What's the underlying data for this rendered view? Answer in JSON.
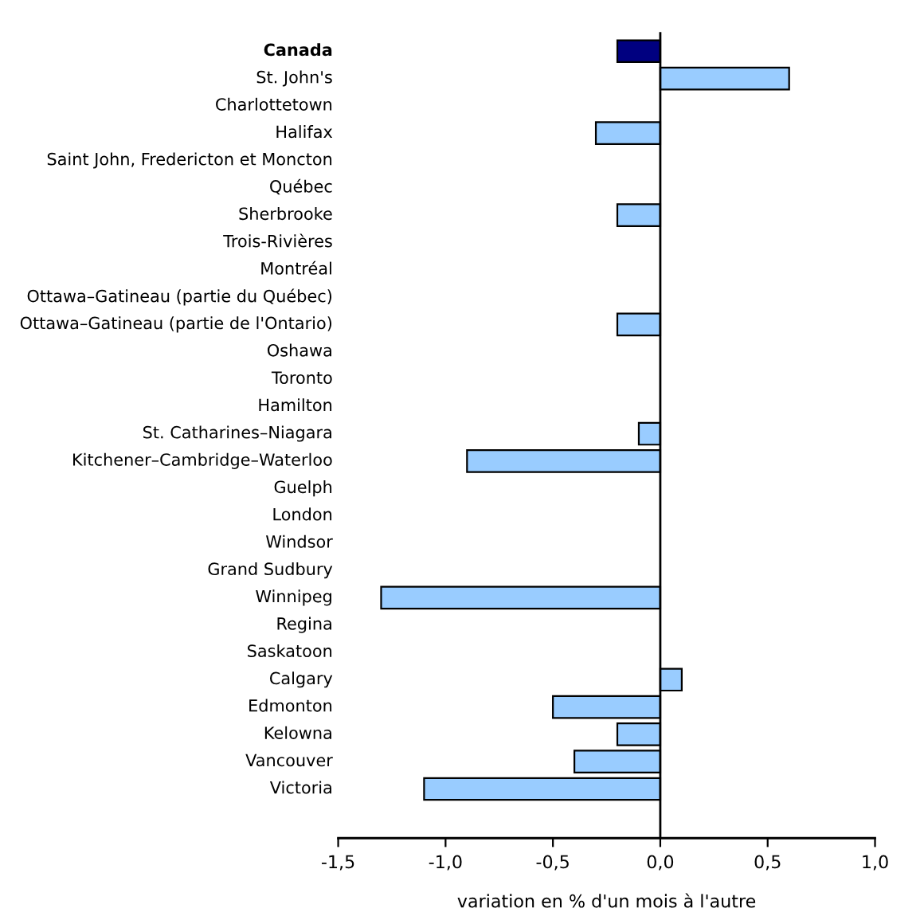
{
  "chart_data": {
    "type": "bar",
    "orientation": "horizontal",
    "xlabel": "variation en % d'un mois à l'autre",
    "categories": [
      "Canada",
      "St. John's",
      "Charlottetown",
      "Halifax",
      "Saint John, Fredericton et Moncton",
      "Québec",
      "Sherbrooke",
      "Trois-Rivières",
      "Montréal",
      "Ottawa–Gatineau (partie du Québec)",
      "Ottawa–Gatineau (partie de l'Ontario)",
      "Oshawa",
      "Toronto",
      "Hamilton",
      "St. Catharines–Niagara",
      "Kitchener–Cambridge–Waterloo",
      "Guelph",
      "London",
      "Windsor",
      "Grand Sudbury",
      "Winnipeg",
      "Regina",
      "Saskatoon",
      "Calgary",
      "Edmonton",
      "Kelowna",
      "Vancouver",
      "Victoria"
    ],
    "values": [
      -0.2,
      0.6,
      0,
      -0.3,
      0,
      0,
      -0.2,
      0,
      0,
      0,
      -0.2,
      0,
      0,
      0,
      -0.1,
      -0.9,
      0,
      0,
      0,
      0,
      -1.3,
      0,
      0,
      0.1,
      -0.5,
      -0.2,
      -0.4,
      -1.1
    ],
    "colors": [
      "#000080",
      "#99ccff",
      "#99ccff",
      "#99ccff",
      "#99ccff",
      "#99ccff",
      "#99ccff",
      "#99ccff",
      "#99ccff",
      "#99ccff",
      "#99ccff",
      "#99ccff",
      "#99ccff",
      "#99ccff",
      "#99ccff",
      "#99ccff",
      "#99ccff",
      "#99ccff",
      "#99ccff",
      "#99ccff",
      "#99ccff",
      "#99ccff",
      "#99ccff",
      "#99ccff",
      "#99ccff",
      "#99ccff",
      "#99ccff",
      "#99ccff"
    ],
    "xlim": [
      -1.5,
      1.0
    ],
    "xticks": [
      {
        "value": -1.5,
        "label": "-1,5"
      },
      {
        "value": -1.0,
        "label": "-1,0"
      },
      {
        "value": -0.5,
        "label": "-0,5"
      },
      {
        "value": 0.0,
        "label": "0,0"
      },
      {
        "value": 0.5,
        "label": "0,5"
      },
      {
        "value": 1.0,
        "label": "1,0"
      }
    ],
    "ref_lines": [
      {
        "axis": "x",
        "value": 0,
        "color": "#000000"
      }
    ]
  }
}
